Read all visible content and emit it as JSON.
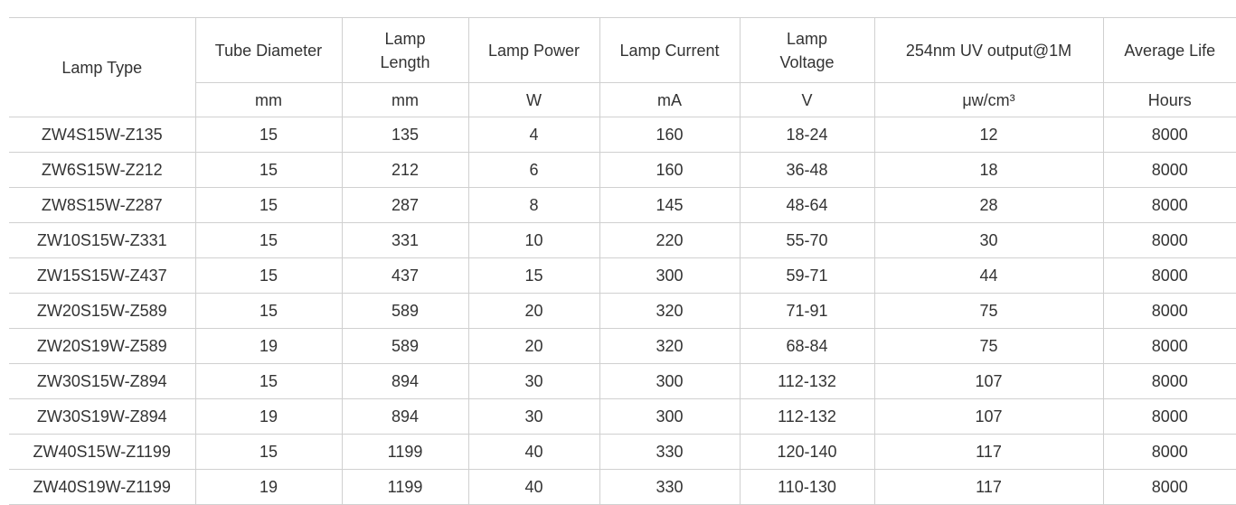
{
  "table": {
    "headers": [
      "Lamp Type",
      "Tube Diameter",
      "Lamp Length",
      "Lamp Power",
      "Lamp Current",
      "Lamp Voltage",
      "254nm UV output@1M",
      "Average Life"
    ],
    "units": [
      "mm",
      "mm",
      "W",
      "mA",
      "V",
      "μw/cm³",
      "Hours"
    ],
    "rows": [
      [
        "ZW4S15W-Z135",
        "15",
        "135",
        "4",
        "160",
        "18-24",
        "12",
        "8000"
      ],
      [
        "ZW6S15W-Z212",
        "15",
        "212",
        "6",
        "160",
        "36-48",
        "18",
        "8000"
      ],
      [
        "ZW8S15W-Z287",
        "15",
        "287",
        "8",
        "145",
        "48-64",
        "28",
        "8000"
      ],
      [
        "ZW10S15W-Z331",
        "15",
        "331",
        "10",
        "220",
        "55-70",
        "30",
        "8000"
      ],
      [
        "ZW15S15W-Z437",
        "15",
        "437",
        "15",
        "300",
        "59-71",
        "44",
        "8000"
      ],
      [
        "ZW20S15W-Z589",
        "15",
        "589",
        "20",
        "320",
        "71-91",
        "75",
        "8000"
      ],
      [
        "ZW20S19W-Z589",
        "19",
        "589",
        "20",
        "320",
        "68-84",
        "75",
        "8000"
      ],
      [
        "ZW30S15W-Z894",
        "15",
        "894",
        "30",
        "300",
        "112-132",
        "107",
        "8000"
      ],
      [
        "ZW30S19W-Z894",
        "19",
        "894",
        "30",
        "300",
        "112-132",
        "107",
        "8000"
      ],
      [
        "ZW40S15W-Z1199",
        "15",
        "1199",
        "40",
        "330",
        "120-140",
        "117",
        "8000"
      ],
      [
        "ZW40S19W-Z1199",
        "19",
        "1199",
        "40",
        "330",
        "110-130",
        "117",
        "8000"
      ]
    ]
  }
}
